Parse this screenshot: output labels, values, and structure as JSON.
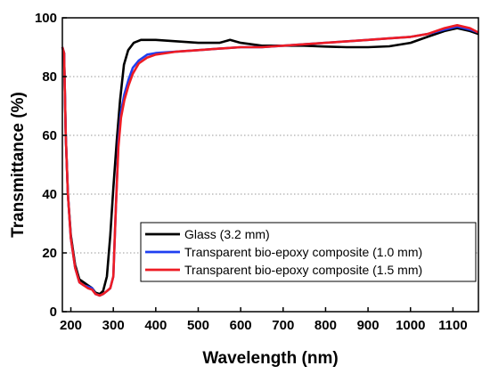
{
  "chart_data": {
    "type": "line",
    "xlabel": "Wavelength (nm)",
    "ylabel": "Transmittance (%)",
    "xlim": [
      180,
      1160
    ],
    "ylim": [
      0,
      100
    ],
    "xticks": [
      200,
      300,
      400,
      500,
      600,
      700,
      800,
      900,
      1000,
      1100
    ],
    "yticks": [
      0,
      20,
      40,
      60,
      80,
      100
    ],
    "grid": "horizontal dotted",
    "legend_position": "lower-right",
    "series": [
      {
        "name": "Glass (3.2 mm)",
        "color": "#000000",
        "points": [
          [
            180,
            90
          ],
          [
            184,
            88
          ],
          [
            188,
            60
          ],
          [
            193,
            40
          ],
          [
            200,
            26
          ],
          [
            210,
            16
          ],
          [
            220,
            11
          ],
          [
            230,
            10
          ],
          [
            240,
            9
          ],
          [
            250,
            8
          ],
          [
            258,
            6.5
          ],
          [
            268,
            6
          ],
          [
            276,
            7
          ],
          [
            285,
            12
          ],
          [
            293,
            26
          ],
          [
            300,
            42
          ],
          [
            308,
            58
          ],
          [
            316,
            72
          ],
          [
            325,
            84
          ],
          [
            335,
            89
          ],
          [
            348,
            91.5
          ],
          [
            365,
            92.5
          ],
          [
            400,
            92.5
          ],
          [
            450,
            92
          ],
          [
            500,
            91.5
          ],
          [
            550,
            91.5
          ],
          [
            575,
            92.5
          ],
          [
            600,
            91.5
          ],
          [
            625,
            91
          ],
          [
            650,
            90.5
          ],
          [
            700,
            90.5
          ],
          [
            750,
            90.5
          ],
          [
            800,
            90.2
          ],
          [
            850,
            90
          ],
          [
            900,
            90
          ],
          [
            950,
            90.3
          ],
          [
            1000,
            91.5
          ],
          [
            1040,
            93.5
          ],
          [
            1080,
            95.5
          ],
          [
            1110,
            96.5
          ],
          [
            1140,
            95.5
          ],
          [
            1160,
            94.5
          ]
        ]
      },
      {
        "name": "Transparent bio-epoxy composite (1.0 mm)",
        "color": "#1f3ff0",
        "points": [
          [
            180,
            90
          ],
          [
            184,
            88
          ],
          [
            188,
            60
          ],
          [
            193,
            40
          ],
          [
            200,
            25
          ],
          [
            210,
            15
          ],
          [
            220,
            10
          ],
          [
            230,
            9
          ],
          [
            240,
            8.5
          ],
          [
            250,
            8
          ],
          [
            258,
            6
          ],
          [
            268,
            5.5
          ],
          [
            276,
            6
          ],
          [
            285,
            7
          ],
          [
            293,
            8
          ],
          [
            300,
            12
          ],
          [
            306,
            35
          ],
          [
            312,
            58
          ],
          [
            318,
            68
          ],
          [
            326,
            74
          ],
          [
            336,
            79
          ],
          [
            346,
            83
          ],
          [
            360,
            85.5
          ],
          [
            380,
            87.5
          ],
          [
            400,
            88
          ],
          [
            450,
            88.5
          ],
          [
            500,
            89
          ],
          [
            550,
            89.5
          ],
          [
            600,
            90
          ],
          [
            625,
            90
          ],
          [
            650,
            90
          ],
          [
            700,
            90.5
          ],
          [
            750,
            91
          ],
          [
            800,
            91.5
          ],
          [
            850,
            92
          ],
          [
            900,
            92.5
          ],
          [
            950,
            93
          ],
          [
            1000,
            93.5
          ],
          [
            1040,
            94.5
          ],
          [
            1080,
            96
          ],
          [
            1110,
            97
          ],
          [
            1140,
            96
          ],
          [
            1160,
            95
          ]
        ]
      },
      {
        "name": "Transparent bio-epoxy composite (1.5 mm)",
        "color": "#ee1c24",
        "points": [
          [
            180,
            90
          ],
          [
            184,
            88
          ],
          [
            188,
            60
          ],
          [
            193,
            40
          ],
          [
            200,
            25
          ],
          [
            210,
            15
          ],
          [
            220,
            10
          ],
          [
            230,
            9
          ],
          [
            240,
            8
          ],
          [
            250,
            7.5
          ],
          [
            258,
            6
          ],
          [
            268,
            5.5
          ],
          [
            276,
            6
          ],
          [
            285,
            7
          ],
          [
            293,
            8
          ],
          [
            300,
            12
          ],
          [
            306,
            35
          ],
          [
            312,
            56
          ],
          [
            318,
            66
          ],
          [
            326,
            72
          ],
          [
            336,
            77
          ],
          [
            346,
            81
          ],
          [
            360,
            84.5
          ],
          [
            380,
            86.5
          ],
          [
            400,
            87.5
          ],
          [
            450,
            88.5
          ],
          [
            500,
            89
          ],
          [
            550,
            89.5
          ],
          [
            600,
            90
          ],
          [
            625,
            90
          ],
          [
            650,
            90
          ],
          [
            700,
            90.5
          ],
          [
            750,
            91
          ],
          [
            800,
            91.5
          ],
          [
            850,
            92
          ],
          [
            900,
            92.5
          ],
          [
            950,
            93
          ],
          [
            1000,
            93.5
          ],
          [
            1040,
            94.5
          ],
          [
            1080,
            96.5
          ],
          [
            1110,
            97.5
          ],
          [
            1140,
            96.5
          ],
          [
            1160,
            95
          ]
        ]
      }
    ]
  }
}
